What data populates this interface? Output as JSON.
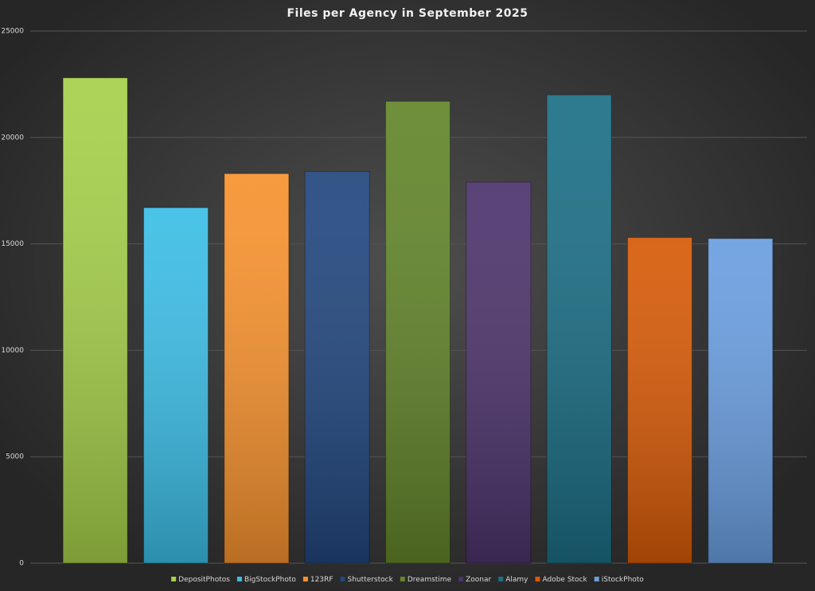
{
  "chart_data": {
    "type": "bar",
    "title": "Files per Agency in September 2025",
    "series": [
      {
        "name": "DepositPhotos",
        "color": "#a6d04a",
        "values": [
          22800
        ]
      },
      {
        "name": "BigStockPhoto",
        "color": "#3bbde6",
        "values": [
          16700
        ]
      },
      {
        "name": "123RF",
        "color": "#f7922e",
        "values": [
          18300
        ]
      },
      {
        "name": "Shutterstock",
        "color": "#21467e",
        "values": [
          18400
        ]
      },
      {
        "name": "Dreamstime",
        "color": "#62852a",
        "values": [
          21700
        ]
      },
      {
        "name": "Zoonar",
        "color": "#4c336b",
        "values": [
          17900
        ]
      },
      {
        "name": "Alamy",
        "color": "#1b6e85",
        "values": [
          22000
        ]
      },
      {
        "name": "Adobe Stock",
        "color": "#d65a07",
        "values": [
          15300
        ]
      },
      {
        "name": "iStockPhoto",
        "color": "#6a9ee0",
        "values": [
          15250
        ]
      }
    ],
    "ylim": [
      0,
      25000
    ],
    "yticks": [
      0,
      5000,
      10000,
      15000,
      20000,
      25000
    ],
    "grid": true,
    "legend": "bottom"
  }
}
